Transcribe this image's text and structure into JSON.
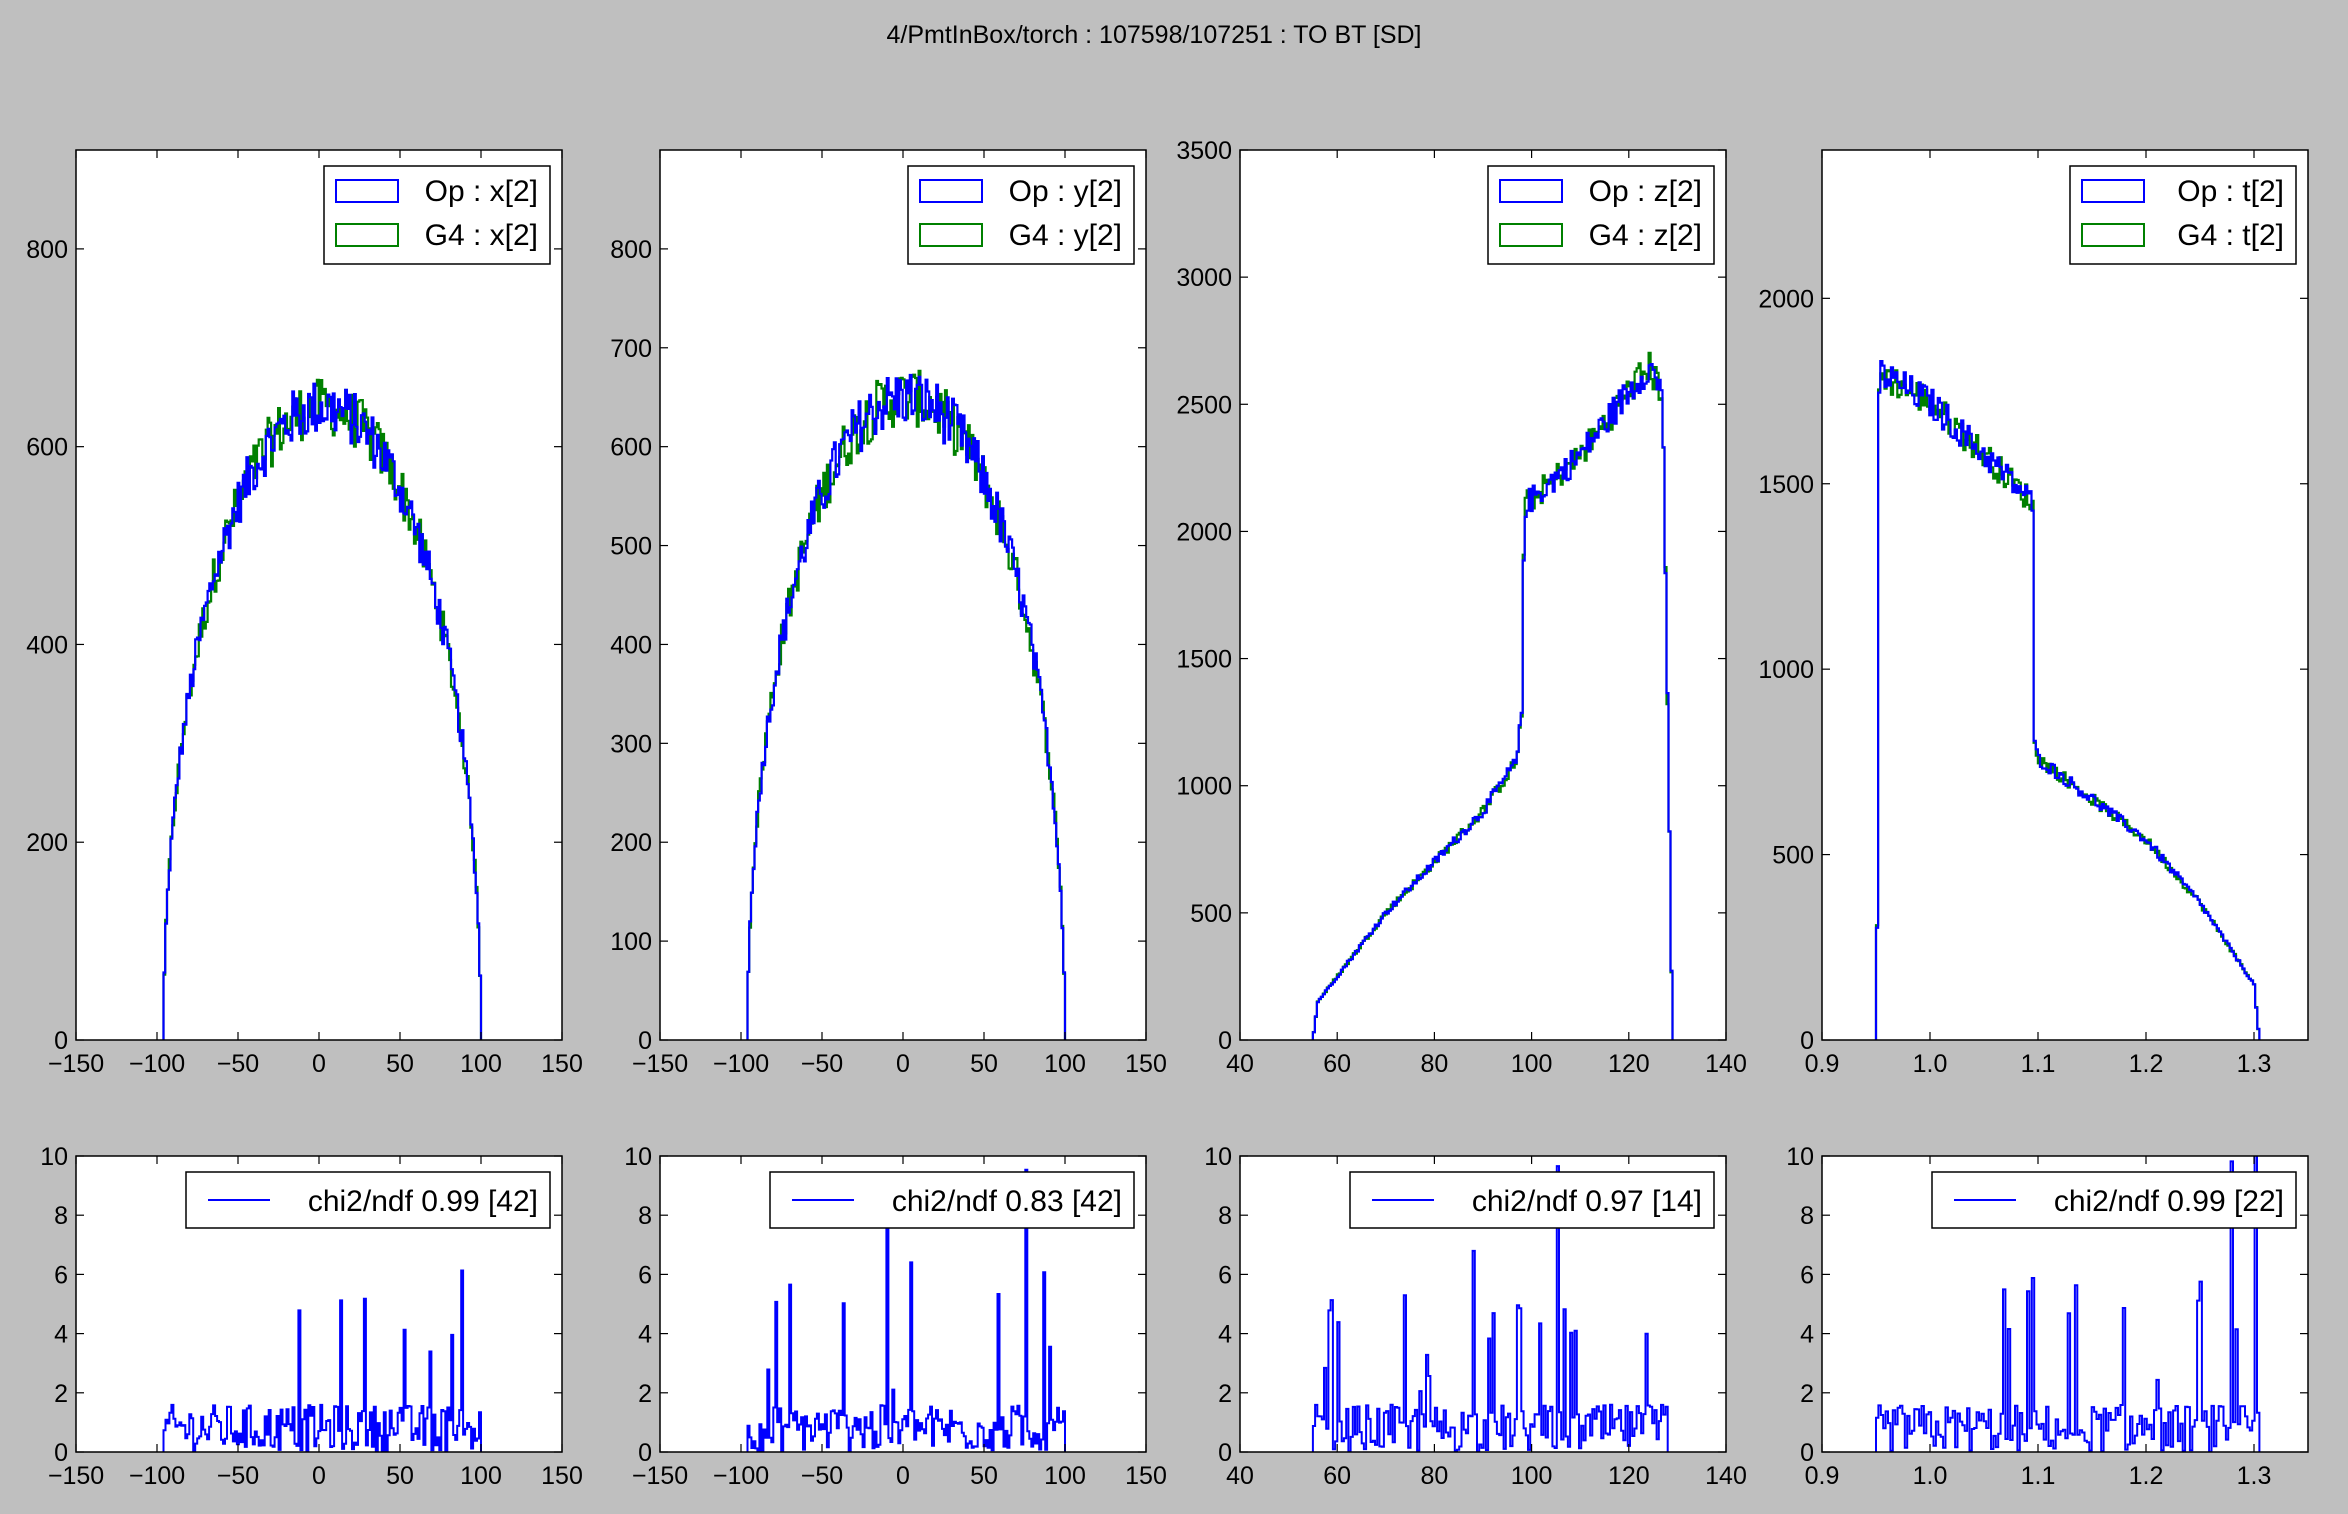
{
  "title": "4/PmtInBox/torch : 107598/107251  :  TO BT [SD]",
  "colors": {
    "op": "#0000ff",
    "g4": "#008000",
    "chi2": "#0000ff",
    "background": "#bfbfbf"
  },
  "chart_data": [
    {
      "id": "x-hist",
      "type": "line",
      "ylim": [
        0,
        900
      ],
      "xlim": [
        -150,
        150
      ],
      "xticks": [
        -150,
        -100,
        -50,
        0,
        50,
        100,
        150
      ],
      "yticks": [
        0,
        200,
        400,
        600,
        800
      ],
      "legend": [
        "Op : x[2]",
        "G4 : x[2]"
      ],
      "legend_position": "top-right",
      "shape": "dome",
      "support": [
        -96,
        100
      ],
      "peak": 640
    },
    {
      "id": "y-hist",
      "type": "line",
      "ylim": [
        0,
        900
      ],
      "xlim": [
        -150,
        150
      ],
      "xticks": [
        -150,
        -100,
        -50,
        0,
        50,
        100,
        150
      ],
      "yticks": [
        0,
        100,
        200,
        300,
        400,
        500,
        600,
        700,
        800
      ],
      "legend": [
        "Op : y[2]",
        "G4 : y[2]"
      ],
      "legend_position": "top-right",
      "shape": "dome",
      "support": [
        -96,
        100
      ],
      "peak": 650
    },
    {
      "id": "z-hist",
      "type": "line",
      "ylim": [
        0,
        3500
      ],
      "xlim": [
        40,
        140
      ],
      "xticks": [
        40,
        60,
        80,
        100,
        120,
        140
      ],
      "yticks": [
        0,
        500,
        1000,
        1500,
        2000,
        2500,
        3000,
        3500
      ],
      "legend": [
        "Op : z[2]",
        "G4 : z[2]"
      ],
      "legend_position": "top-right",
      "shape": "ramp",
      "points": [
        [
          55,
          0
        ],
        [
          56,
          150
        ],
        [
          60,
          250
        ],
        [
          70,
          500
        ],
        [
          80,
          700
        ],
        [
          90,
          900
        ],
        [
          97,
          1100
        ],
        [
          98,
          1300
        ],
        [
          98.5,
          2100
        ],
        [
          110,
          2300
        ],
        [
          120,
          2550
        ],
        [
          124,
          2650
        ],
        [
          127,
          2550
        ],
        [
          128,
          1300
        ],
        [
          129,
          0
        ]
      ]
    },
    {
      "id": "t-hist",
      "type": "line",
      "ylim": [
        0,
        2400
      ],
      "xlim": [
        0.9,
        1.35
      ],
      "xticks": [
        0.9,
        1.0,
        1.1,
        1.2,
        1.3
      ],
      "yticks": [
        0,
        500,
        1000,
        1500,
        2000
      ],
      "legend": [
        "Op : t[2]",
        "G4 : t[2]"
      ],
      "legend_position": "top-right",
      "shape": "falling",
      "points": [
        [
          0.95,
          0
        ],
        [
          0.952,
          620
        ],
        [
          0.953,
          1800
        ],
        [
          1.0,
          1720
        ],
        [
          1.05,
          1580
        ],
        [
          1.095,
          1450
        ],
        [
          1.096,
          800
        ],
        [
          1.1,
          760
        ],
        [
          1.15,
          650
        ],
        [
          1.2,
          540
        ],
        [
          1.25,
          370
        ],
        [
          1.3,
          150
        ],
        [
          1.305,
          0
        ]
      ]
    },
    {
      "id": "x-chi2",
      "type": "line",
      "ylim": [
        0,
        10
      ],
      "xlim": [
        -150,
        150
      ],
      "xticks": [
        -150,
        -100,
        -50,
        0,
        50,
        100,
        150
      ],
      "yticks": [
        0,
        2,
        4,
        6,
        8,
        10
      ],
      "legend": [
        "chi2/ndf 0.99 [42]"
      ],
      "legend_position": "top-right",
      "support": [
        -96,
        100
      ]
    },
    {
      "id": "y-chi2",
      "type": "line",
      "ylim": [
        0,
        10
      ],
      "xlim": [
        -150,
        150
      ],
      "xticks": [
        -150,
        -100,
        -50,
        0,
        50,
        100,
        150
      ],
      "yticks": [
        0,
        2,
        4,
        6,
        8,
        10
      ],
      "legend": [
        "chi2/ndf 0.83 [42]"
      ],
      "legend_position": "top-right",
      "support": [
        -96,
        100
      ]
    },
    {
      "id": "z-chi2",
      "type": "line",
      "ylim": [
        0,
        10
      ],
      "xlim": [
        40,
        140
      ],
      "xticks": [
        40,
        60,
        80,
        100,
        120,
        140
      ],
      "yticks": [
        0,
        2,
        4,
        6,
        8,
        10
      ],
      "legend": [
        "chi2/ndf 0.97 [14]"
      ],
      "legend_position": "top-right",
      "support": [
        55,
        128
      ]
    },
    {
      "id": "t-chi2",
      "type": "line",
      "ylim": [
        0,
        10
      ],
      "xlim": [
        0.9,
        1.35
      ],
      "xticks": [
        0.9,
        1.0,
        1.1,
        1.2,
        1.3
      ],
      "yticks": [
        0,
        2,
        4,
        6,
        8,
        10
      ],
      "legend": [
        "chi2/ndf 0.99 [22]"
      ],
      "legend_position": "top-right",
      "support": [
        0.95,
        1.305
      ]
    }
  ]
}
